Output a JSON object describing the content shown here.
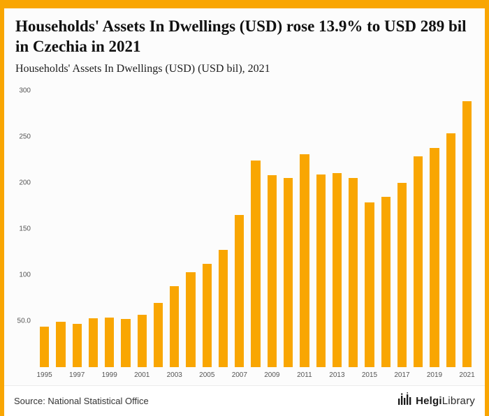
{
  "accent_color": "#F9A602",
  "header": {
    "title": "Households' Assets In Dwellings (USD) rose 13.9% to USD 289 bil in Czechia in 2021",
    "subtitle": "Households' Assets In Dwellings (USD) (USD bil), 2021"
  },
  "footer": {
    "source": "Source: National Statistical Office",
    "logo_part1": "Helgi",
    "logo_part2": "Library"
  },
  "chart_data": {
    "type": "bar",
    "title": "Households' Assets In Dwellings (USD) rose 13.9% to USD 289 bil in Czechia in 2021",
    "subtitle": "Households' Assets In Dwellings (USD) (USD bil), 2021",
    "xlabel": "",
    "ylabel": "USD bil",
    "categories": [
      "1995",
      "1996",
      "1997",
      "1998",
      "1999",
      "2000",
      "2001",
      "2002",
      "2003",
      "2004",
      "2005",
      "2006",
      "2007",
      "2008",
      "2009",
      "2010",
      "2011",
      "2012",
      "2013",
      "2014",
      "2015",
      "2016",
      "2017",
      "2018",
      "2019",
      "2020",
      "2021"
    ],
    "values": [
      44,
      49,
      47,
      53,
      54,
      52,
      57,
      70,
      88,
      103,
      112,
      127,
      165,
      224,
      208,
      205,
      231,
      209,
      211,
      205,
      179,
      185,
      200,
      229,
      238,
      254,
      289
    ],
    "bar_color": "#F9A602",
    "ylim": [
      0,
      300
    ],
    "yticks": [
      50,
      100,
      150,
      200,
      250,
      300
    ],
    "ytick_labels": [
      "50.0",
      "100",
      "150",
      "200",
      "250",
      "300"
    ],
    "xtick_labels": [
      "1995",
      "1997",
      "1999",
      "2001",
      "2003",
      "2005",
      "2007",
      "2009",
      "2011",
      "2013",
      "2015",
      "2017",
      "2019",
      "2021"
    ],
    "grid": false,
    "legend": "none"
  }
}
